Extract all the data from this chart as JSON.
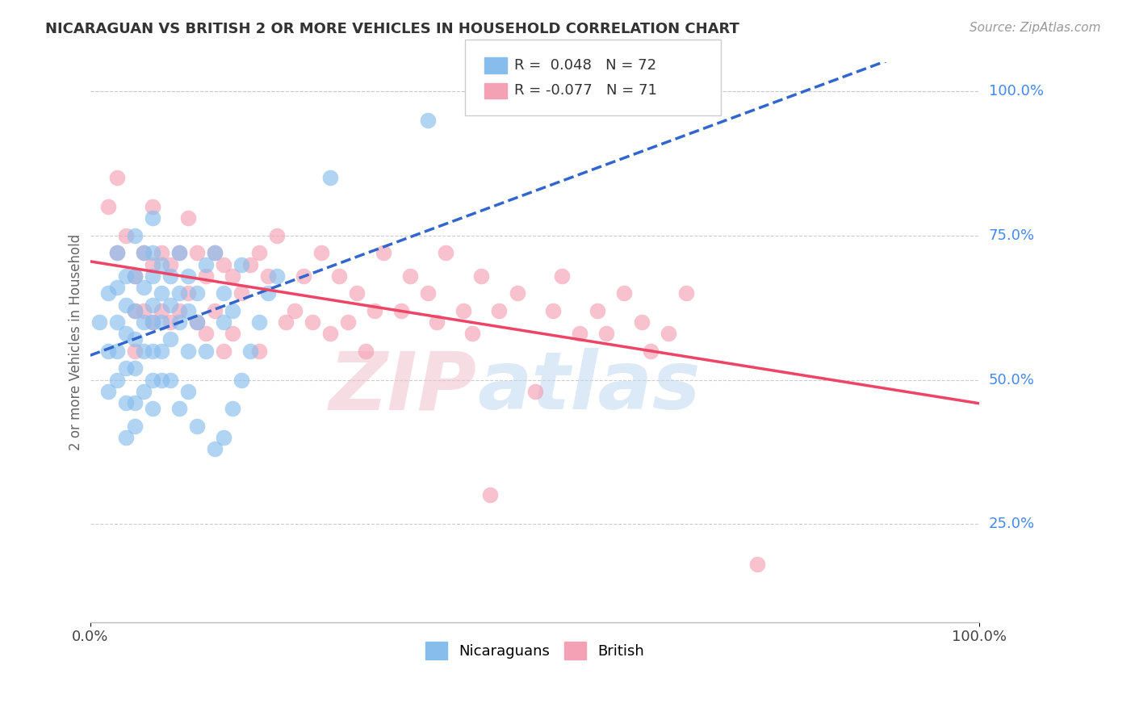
{
  "title": "NICARAGUAN VS BRITISH 2 OR MORE VEHICLES IN HOUSEHOLD CORRELATION CHART",
  "source": "Source: ZipAtlas.com",
  "ylabel": "2 or more Vehicles in Household",
  "xlim": [
    0.0,
    1.0
  ],
  "ylim": [
    0.08,
    1.05
  ],
  "ytick_labels": [
    "25.0%",
    "50.0%",
    "75.0%",
    "100.0%"
  ],
  "ytick_positions": [
    0.25,
    0.5,
    0.75,
    1.0
  ],
  "watermark": "ZIPatlas",
  "legend_r1": "R =  0.048",
  "legend_n1": "N = 72",
  "legend_r2": "R = -0.077",
  "legend_n2": "N = 71",
  "color_nicaraguan": "#87BDED",
  "color_british": "#F4A0B5",
  "line_color_nicaraguan": "#3366CC",
  "line_color_british": "#EE4466",
  "background_color": "#FFFFFF",
  "grid_color": "#CCCCCC",
  "nicaraguan_x": [
    0.01,
    0.02,
    0.02,
    0.02,
    0.03,
    0.03,
    0.03,
    0.03,
    0.03,
    0.04,
    0.04,
    0.04,
    0.04,
    0.04,
    0.04,
    0.05,
    0.05,
    0.05,
    0.05,
    0.05,
    0.05,
    0.05,
    0.06,
    0.06,
    0.06,
    0.06,
    0.06,
    0.07,
    0.07,
    0.07,
    0.07,
    0.07,
    0.07,
    0.07,
    0.07,
    0.08,
    0.08,
    0.08,
    0.08,
    0.08,
    0.09,
    0.09,
    0.09,
    0.09,
    0.1,
    0.1,
    0.1,
    0.1,
    0.11,
    0.11,
    0.11,
    0.11,
    0.12,
    0.12,
    0.12,
    0.13,
    0.13,
    0.14,
    0.14,
    0.15,
    0.15,
    0.15,
    0.16,
    0.16,
    0.17,
    0.17,
    0.18,
    0.19,
    0.2,
    0.21,
    0.27,
    0.38
  ],
  "nicaraguan_y": [
    0.6,
    0.65,
    0.55,
    0.48,
    0.72,
    0.66,
    0.6,
    0.55,
    0.5,
    0.68,
    0.63,
    0.58,
    0.52,
    0.46,
    0.4,
    0.75,
    0.68,
    0.62,
    0.57,
    0.52,
    0.46,
    0.42,
    0.72,
    0.66,
    0.6,
    0.55,
    0.48,
    0.78,
    0.72,
    0.68,
    0.63,
    0.6,
    0.55,
    0.5,
    0.45,
    0.7,
    0.65,
    0.6,
    0.55,
    0.5,
    0.68,
    0.63,
    0.57,
    0.5,
    0.72,
    0.65,
    0.6,
    0.45,
    0.68,
    0.62,
    0.55,
    0.48,
    0.65,
    0.6,
    0.42,
    0.7,
    0.55,
    0.72,
    0.38,
    0.65,
    0.6,
    0.4,
    0.62,
    0.45,
    0.7,
    0.5,
    0.55,
    0.6,
    0.65,
    0.68,
    0.85,
    0.95
  ],
  "british_x": [
    0.02,
    0.03,
    0.03,
    0.04,
    0.05,
    0.05,
    0.05,
    0.06,
    0.06,
    0.07,
    0.07,
    0.07,
    0.08,
    0.08,
    0.09,
    0.09,
    0.1,
    0.1,
    0.11,
    0.11,
    0.12,
    0.12,
    0.13,
    0.13,
    0.14,
    0.14,
    0.15,
    0.15,
    0.16,
    0.16,
    0.17,
    0.18,
    0.19,
    0.19,
    0.2,
    0.21,
    0.22,
    0.23,
    0.24,
    0.25,
    0.26,
    0.27,
    0.28,
    0.29,
    0.3,
    0.31,
    0.32,
    0.33,
    0.35,
    0.36,
    0.38,
    0.39,
    0.4,
    0.42,
    0.43,
    0.44,
    0.45,
    0.46,
    0.48,
    0.5,
    0.52,
    0.53,
    0.55,
    0.57,
    0.58,
    0.6,
    0.62,
    0.63,
    0.65,
    0.67,
    0.75
  ],
  "british_y": [
    0.8,
    0.85,
    0.72,
    0.75,
    0.68,
    0.62,
    0.55,
    0.72,
    0.62,
    0.8,
    0.7,
    0.6,
    0.72,
    0.62,
    0.7,
    0.6,
    0.72,
    0.62,
    0.78,
    0.65,
    0.72,
    0.6,
    0.68,
    0.58,
    0.72,
    0.62,
    0.7,
    0.55,
    0.68,
    0.58,
    0.65,
    0.7,
    0.72,
    0.55,
    0.68,
    0.75,
    0.6,
    0.62,
    0.68,
    0.6,
    0.72,
    0.58,
    0.68,
    0.6,
    0.65,
    0.55,
    0.62,
    0.72,
    0.62,
    0.68,
    0.65,
    0.6,
    0.72,
    0.62,
    0.58,
    0.68,
    0.3,
    0.62,
    0.65,
    0.48,
    0.62,
    0.68,
    0.58,
    0.62,
    0.58,
    0.65,
    0.6,
    0.55,
    0.58,
    0.65,
    0.18
  ]
}
